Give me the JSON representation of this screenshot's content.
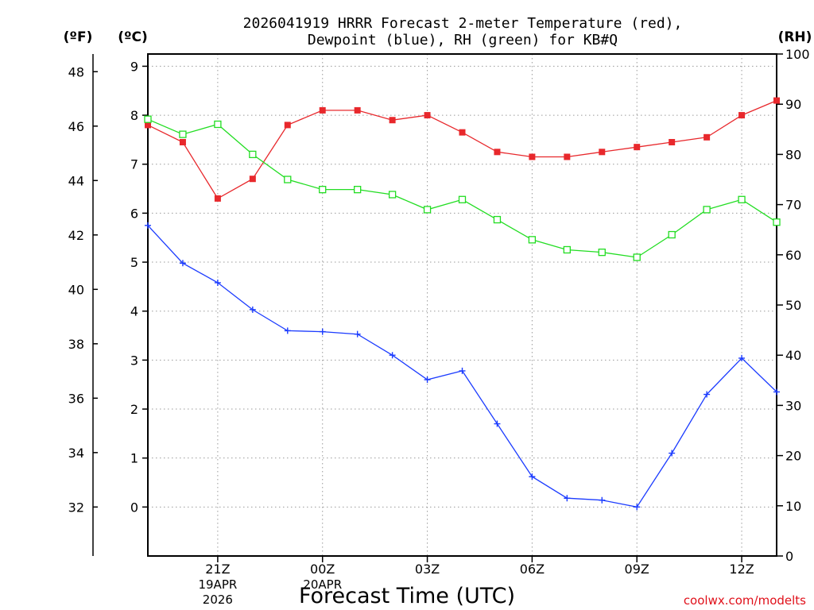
{
  "chart_data": {
    "type": "line",
    "title_lines": [
      "2026041919 HRRR Forecast 2-meter Temperature (red),",
      "Dewpoint (blue), RH (green) for KB#Q"
    ],
    "xlabel": "Forecast Time (UTC)",
    "x_hours": [
      19,
      20,
      21,
      22,
      23,
      24,
      25,
      26,
      27,
      28,
      29,
      30,
      31,
      32,
      33,
      34,
      35,
      36,
      37
    ],
    "x_ticks": [
      "21Z",
      "00Z",
      "03Z",
      "06Z",
      "09Z",
      "12Z"
    ],
    "date_labels": [
      {
        "tick": "21Z",
        "lines": [
          "19APR",
          "2026"
        ]
      },
      {
        "tick": "00Z",
        "lines": [
          "20APR"
        ]
      }
    ],
    "left_axis_f": {
      "unit": "(ºF)",
      "ticks": [
        "32",
        "34",
        "36",
        "38",
        "40",
        "42",
        "44",
        "46",
        "48"
      ]
    },
    "left_axis_c": {
      "unit": "(ºC)",
      "ticks": [
        "0",
        "1",
        "2",
        "3",
        "4",
        "5",
        "6",
        "7",
        "8",
        "9"
      ],
      "ylim": [
        -1,
        9.25
      ]
    },
    "right_axis_rh": {
      "unit": "(RH)",
      "ticks": [
        "0",
        "10",
        "20",
        "30",
        "40",
        "50",
        "60",
        "70",
        "80",
        "90",
        "100"
      ],
      "ylim": [
        0,
        100
      ]
    },
    "series": [
      {
        "name": "Temperature",
        "axis": "c",
        "color": "#e8282c",
        "marker": "filled-square",
        "values": [
          7.8,
          7.45,
          6.3,
          6.7,
          7.8,
          8.1,
          8.1,
          7.9,
          8.0,
          7.65,
          7.25,
          7.15,
          7.15,
          7.25,
          7.35,
          7.45,
          7.55,
          8.0,
          8.3
        ]
      },
      {
        "name": "Dewpoint",
        "axis": "c",
        "color": "#1c3cff",
        "marker": "plus",
        "values": [
          5.75,
          4.98,
          4.58,
          4.03,
          3.6,
          3.58,
          3.53,
          3.1,
          2.6,
          2.78,
          1.7,
          0.62,
          0.18,
          0.14,
          0.0,
          1.1,
          2.3,
          3.04,
          2.35
        ]
      },
      {
        "name": "RH",
        "axis": "rh",
        "color": "#22dd22",
        "marker": "open-square",
        "values": [
          87,
          84,
          86,
          80,
          75,
          73,
          73,
          72,
          69,
          71,
          67,
          63,
          61,
          60.5,
          59.5,
          64,
          69,
          71,
          66.5
        ]
      }
    ]
  },
  "credit": "coolwx.com/modelts"
}
